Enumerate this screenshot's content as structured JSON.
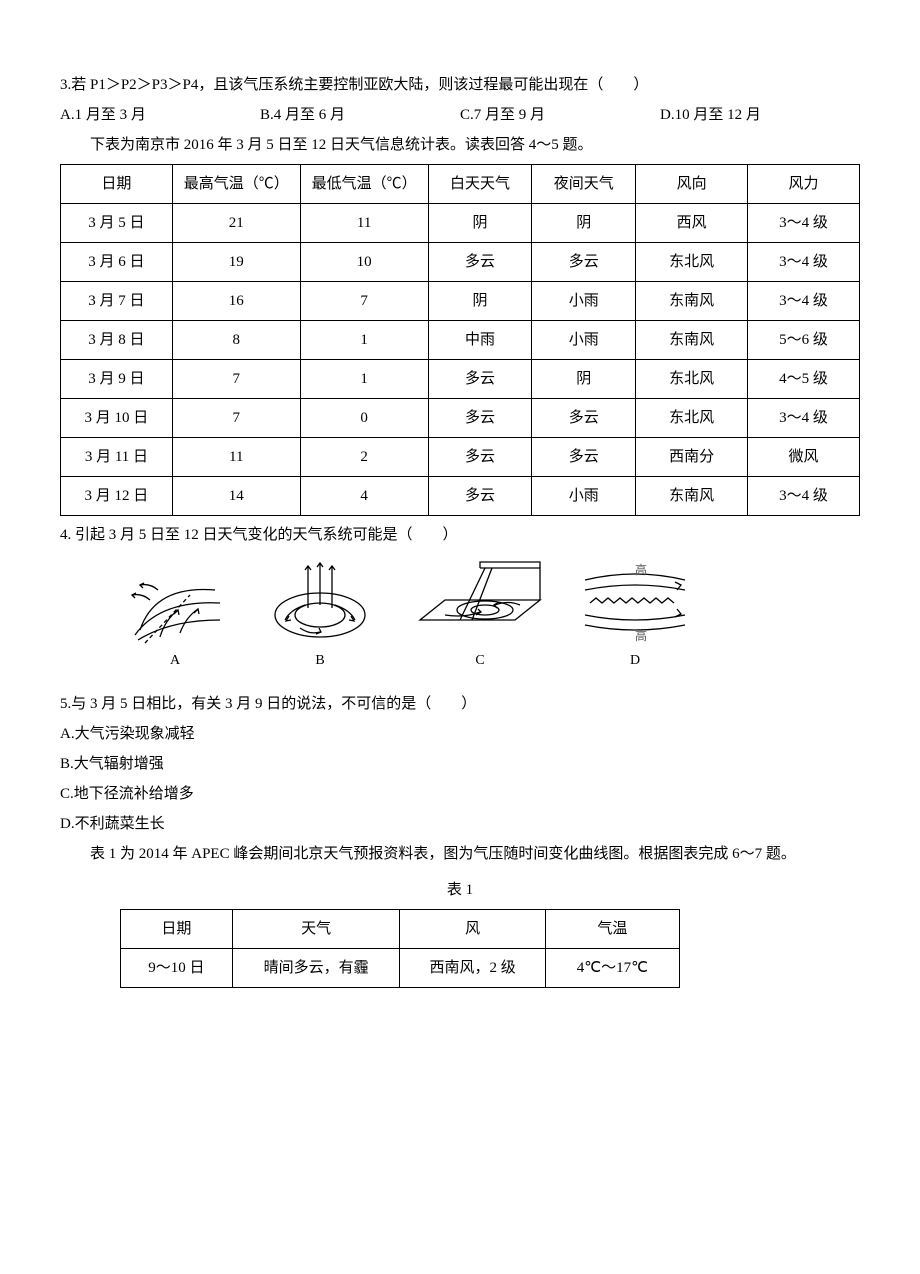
{
  "q3": {
    "text": "3.若 P1＞P2＞P3＞P4，且该气压系统主要控制亚欧大陆，则该过程最可能出现在（　　）",
    "optA": "A.1 月至 3 月",
    "optB": "B.4 月至 6 月",
    "optC": "C.7 月至 9 月",
    "optD": "D.10 月至 12 月"
  },
  "table1_intro": "下表为南京市 2016 年 3 月 5 日至 12 日天气信息统计表。读表回答 4～5 题。",
  "table1": {
    "headers": [
      "日期",
      "最高气温（℃）",
      "最低气温（℃）",
      "白天天气",
      "夜间天气",
      "风向",
      "风力"
    ],
    "rows": [
      [
        "3 月 5 日",
        "21",
        "11",
        "阴",
        "阴",
        "西风",
        "3～4 级"
      ],
      [
        "3 月 6 日",
        "19",
        "10",
        "多云",
        "多云",
        "东北风",
        "3～4 级"
      ],
      [
        "3 月 7 日",
        "16",
        "7",
        "阴",
        "小雨",
        "东南风",
        "3～4 级"
      ],
      [
        "3 月 8 日",
        "8",
        "1",
        "中雨",
        "小雨",
        "东南风",
        "5～6 级"
      ],
      [
        "3 月 9 日",
        "7",
        "1",
        "多云",
        "阴",
        "东北风",
        "4～5 级"
      ],
      [
        "3 月 10 日",
        "7",
        "0",
        "多云",
        "多云",
        "东北风",
        "3～4 级"
      ],
      [
        "3 月 11 日",
        "11",
        "2",
        "多云",
        "多云",
        "西南分",
        "微风"
      ],
      [
        "3 月 12 日",
        "14",
        "4",
        "多云",
        "小雨",
        "东南风",
        "3～4 级"
      ]
    ],
    "col_widths": [
      "14%",
      "16%",
      "16%",
      "13%",
      "13%",
      "14%",
      "14%"
    ]
  },
  "q4": {
    "text": "4.  引起 3 月 5 日至 12 日天气变化的天气系统可能是（　　）",
    "labels": {
      "a": "A",
      "b": "B",
      "c": "C",
      "d": "D"
    }
  },
  "q5": {
    "text": "5.与 3 月 5 日相比，有关 3 月 9 日的说法，不可信的是（　　）",
    "optA": "A.大气污染现象减轻",
    "optB": "B.大气辐射增强",
    "optC": "C.地下径流补给增多",
    "optD": "D.不利蔬菜生长"
  },
  "table2_intro": "表 1 为 2014 年 APEC 峰会期间北京天气预报资料表，图为气压随时间变化曲线图。根据图表完成 6～7 题。",
  "table2_caption": "表 1",
  "table2": {
    "headers": [
      "日期",
      "天气",
      "风",
      "气温"
    ],
    "rows": [
      [
        "9～10 日",
        "晴间多云，有霾",
        "西南风，2 级",
        "4℃～17℃"
      ]
    ],
    "col_widths": [
      "20%",
      "30%",
      "26%",
      "24%"
    ]
  },
  "fig_hi_label": "高",
  "svg": {
    "stroke": "#000000",
    "stroke_width": 1.3,
    "bg": "#ffffff"
  }
}
